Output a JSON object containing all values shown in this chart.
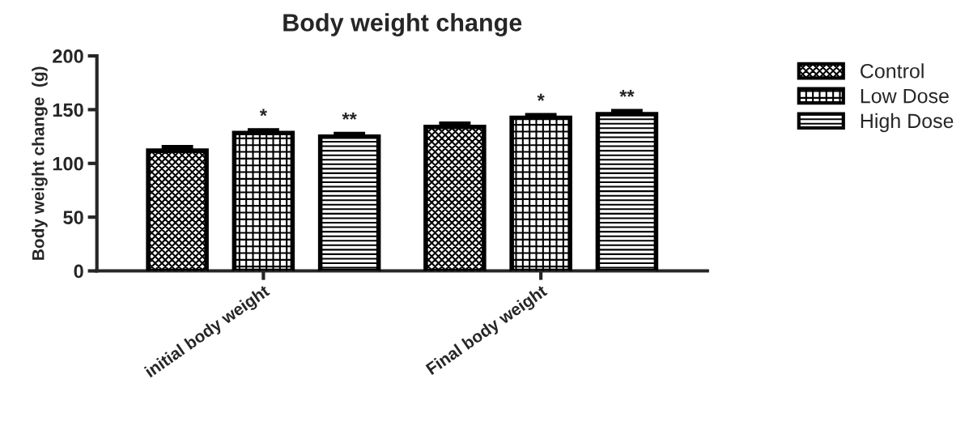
{
  "chart_data": {
    "type": "bar",
    "title": "Body weight change",
    "ylabel": "Body weight change  (g)",
    "categories": [
      "initial body weight",
      "Final body weight"
    ],
    "series": [
      {
        "name": "Control",
        "color": "#000000",
        "values": [
          111.8,
          133.9
        ],
        "errors": [
          3.2,
          3.0
        ]
      },
      {
        "name": "Low Dose",
        "color": "#000000",
        "values": [
          128.3,
          142.4
        ],
        "errors": [
          2.4,
          2.4
        ],
        "value_labels": [
          "*",
          "*"
        ]
      },
      {
        "name": "High Dose",
        "color": "#000000",
        "values": [
          124.9,
          145.8
        ],
        "errors": [
          2.4,
          2.7
        ],
        "value_labels": [
          "**",
          "**"
        ]
      }
    ],
    "ylim": [
      0,
      200
    ],
    "yticks": [
      0,
      50,
      100,
      150,
      200
    ],
    "grid": false,
    "legend": "top right"
  }
}
